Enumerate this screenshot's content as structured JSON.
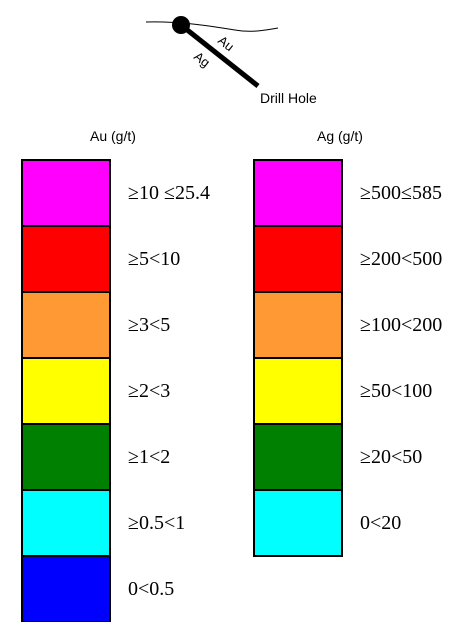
{
  "drill_hole_schematic": {
    "label": "Drill Hole",
    "upper_side_label": "Au",
    "lower_side_label": "Ag"
  },
  "au_legend": {
    "title": "Au (g/t)",
    "bins": [
      {
        "label": "≥10 ≤25.4",
        "color": "#ff00ff"
      },
      {
        "label": "≥5<10",
        "color": "#ff0000"
      },
      {
        "label": "≥3<5",
        "color": "#ff9933"
      },
      {
        "label": "≥2<3",
        "color": "#ffff00"
      },
      {
        "label": "≥1<2",
        "color": "#008000"
      },
      {
        "label": "≥0.5<1",
        "color": "#00ffff"
      },
      {
        "label": "0<0.5",
        "color": "#0000ff"
      }
    ]
  },
  "ag_legend": {
    "title": "Ag (g/t)",
    "bins": [
      {
        "label": "≥500≤585",
        "color": "#ff00ff"
      },
      {
        "label": "≥200<500",
        "color": "#ff0000"
      },
      {
        "label": "≥100<200",
        "color": "#ff9933"
      },
      {
        "label": "≥50<100",
        "color": "#ffff00"
      },
      {
        "label": "≥20<50",
        "color": "#008000"
      },
      {
        "label": "0<20",
        "color": "#00ffff"
      }
    ]
  }
}
